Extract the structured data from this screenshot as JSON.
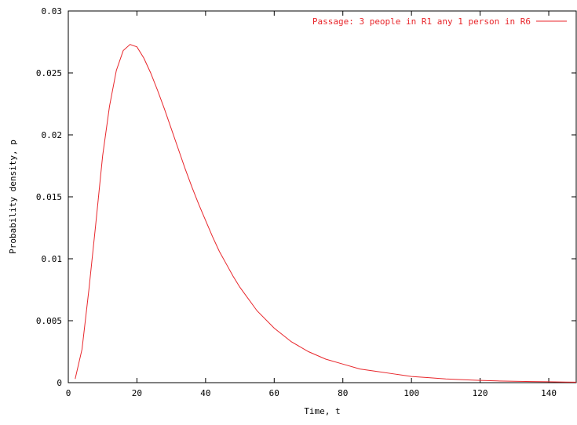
{
  "chart_data": {
    "type": "line",
    "title": "",
    "xlabel": "Time, t",
    "ylabel": "Probability density, p",
    "xlim": [
      0,
      148
    ],
    "ylim": [
      0,
      0.03
    ],
    "x_ticks": [
      0,
      20,
      40,
      60,
      80,
      100,
      120,
      140
    ],
    "x_tick_labels": [
      "0",
      "20",
      "40",
      "60",
      "80",
      "100",
      "120",
      "140"
    ],
    "y_ticks": [
      0,
      0.005,
      0.01,
      0.015,
      0.02,
      0.025,
      0.03
    ],
    "y_tick_labels": [
      "0",
      "0.005",
      "0.01",
      "0.015",
      "0.02",
      "0.025",
      "0.03"
    ],
    "grid": false,
    "legend_position": "top-right",
    "line_color": "#e8262b",
    "series": [
      {
        "name": "Passage: 3 people in R1 any 1 person in R6",
        "x": [
          2,
          4,
          6,
          8,
          10,
          12,
          14,
          16,
          18,
          20,
          22,
          24,
          26,
          28,
          30,
          32,
          34,
          36,
          38,
          40,
          42,
          44,
          46,
          48,
          50,
          55,
          60,
          65,
          70,
          75,
          80,
          85,
          90,
          95,
          100,
          105,
          110,
          115,
          120,
          125,
          130,
          135,
          140,
          145,
          148
        ],
        "y": [
          0.0003,
          0.0027,
          0.0075,
          0.0128,
          0.0183,
          0.0223,
          0.0252,
          0.0268,
          0.0273,
          0.0271,
          0.0262,
          0.025,
          0.0236,
          0.0221,
          0.0205,
          0.0189,
          0.0173,
          0.0158,
          0.0144,
          0.0131,
          0.0118,
          0.0106,
          0.0096,
          0.0086,
          0.0077,
          0.0058,
          0.0044,
          0.0033,
          0.0025,
          0.0019,
          0.0015,
          0.0011,
          0.0009,
          0.0007,
          0.0005,
          0.0004,
          0.0003,
          0.00024,
          0.00018,
          0.00014,
          0.00011,
          9e-05,
          7e-05,
          5e-05,
          4e-05
        ]
      }
    ]
  }
}
